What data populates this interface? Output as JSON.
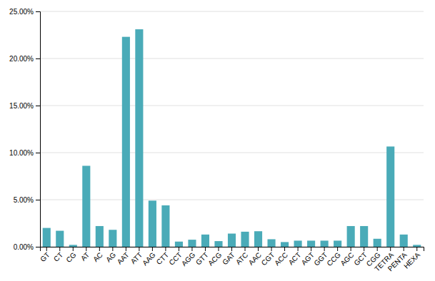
{
  "chart_data": {
    "type": "bar",
    "categories": [
      "GT",
      "CT",
      "CG",
      "AT",
      "AC",
      "AG",
      "AAT",
      "ATT",
      "AAG",
      "CTT",
      "CCT",
      "AGG",
      "GTT",
      "ACG",
      "GAT",
      "ATC",
      "AAC",
      "CGT",
      "ACC",
      "ACT",
      "AGT",
      "GGT",
      "CCG",
      "AGC",
      "GCT",
      "CGG",
      "TETRA",
      "PENTA",
      "HEXA"
    ],
    "values": [
      2.0,
      1.7,
      0.2,
      8.6,
      2.2,
      1.8,
      22.3,
      23.1,
      4.9,
      4.4,
      0.55,
      0.75,
      1.3,
      0.6,
      1.4,
      1.6,
      1.65,
      0.8,
      0.5,
      0.65,
      0.65,
      0.65,
      0.65,
      2.2,
      2.2,
      0.85,
      10.65,
      1.3,
      0.2
    ],
    "color": "#4AABB8",
    "ylim": [
      0,
      25.0
    ],
    "yticks": [
      {
        "value": 0.0,
        "label": "0.00%"
      },
      {
        "value": 5.0,
        "label": "5.00%"
      },
      {
        "value": 10.0,
        "label": "10.00%"
      },
      {
        "value": 15.0,
        "label": "15.00%"
      },
      {
        "value": 20.0,
        "label": "20.00%"
      },
      {
        "value": 25.0,
        "label": "25.00%"
      }
    ],
    "grid": true
  }
}
